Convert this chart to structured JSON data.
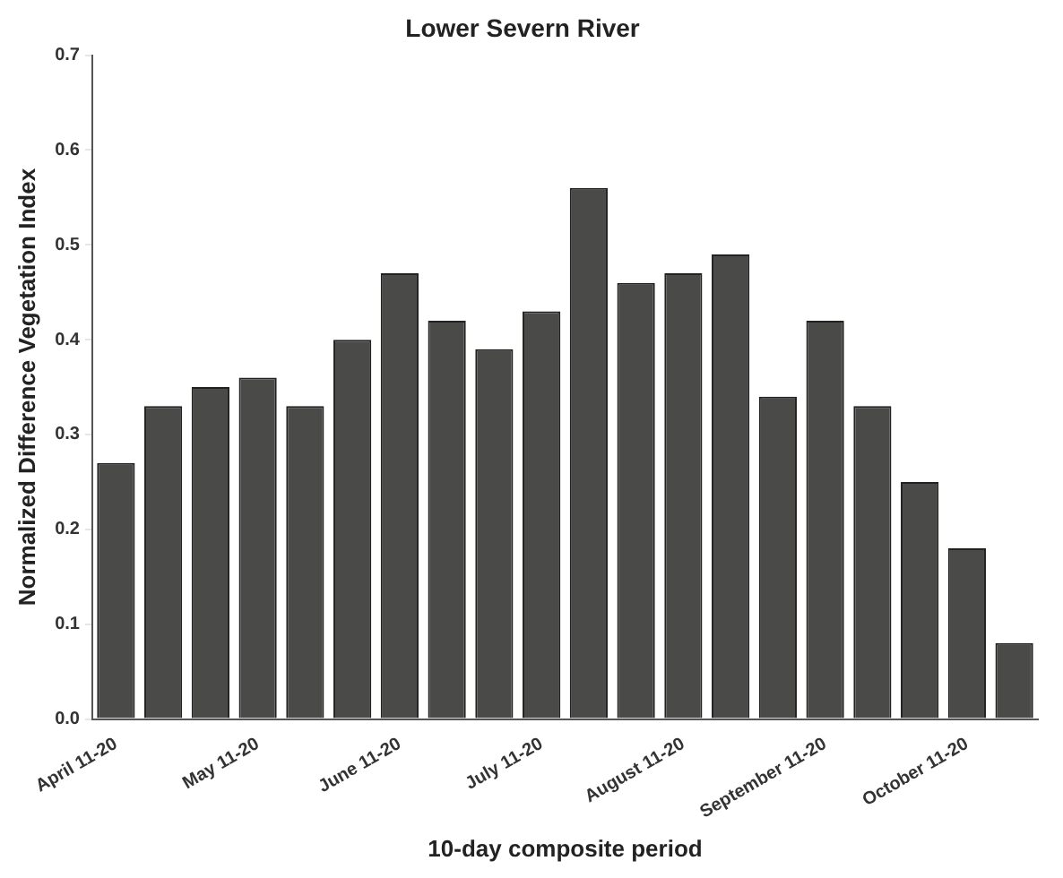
{
  "chart_data": {
    "type": "bar",
    "title": "Lower Severn River",
    "xlabel": "10-day composite period",
    "ylabel": "Normalized Difference Vegetation Index",
    "categories": [
      "April 11-20",
      null,
      null,
      "May 11-20",
      null,
      null,
      "June 11-20",
      null,
      null,
      "July 11-20",
      null,
      null,
      "August 11-20",
      null,
      null,
      "September 11-20",
      null,
      null,
      "October 11-20",
      null
    ],
    "values": [
      0.27,
      0.33,
      0.35,
      0.36,
      0.33,
      0.4,
      0.47,
      0.42,
      0.39,
      0.43,
      0.56,
      0.46,
      0.47,
      0.49,
      0.34,
      0.42,
      0.33,
      0.25,
      0.18,
      0.08
    ],
    "color": "#4a4a48",
    "ylim": [
      0,
      0.7
    ],
    "yticks": [
      {
        "value": 0,
        "label": "0.0"
      },
      0.1,
      0.2,
      0.3,
      0.4,
      0.5,
      0.6,
      0.7
    ],
    "grid": false,
    "legend": false
  }
}
